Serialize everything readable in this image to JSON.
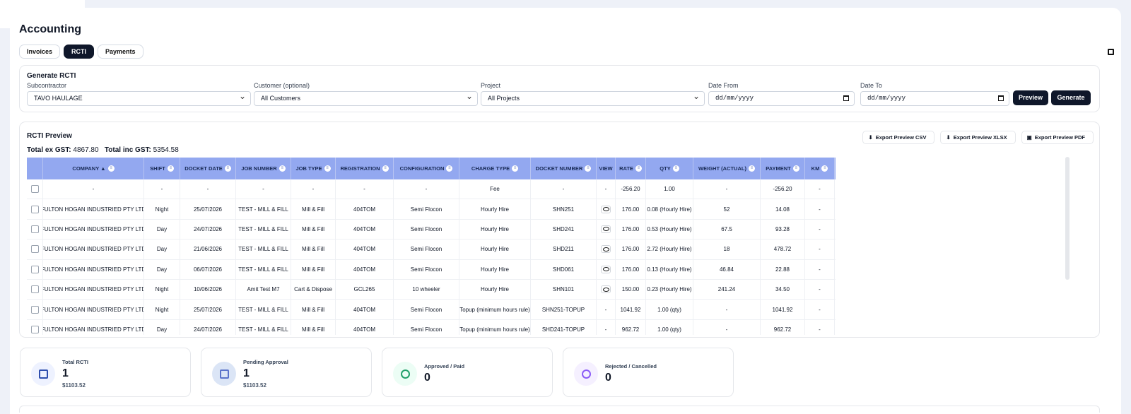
{
  "header": {
    "title": "Accounting",
    "tabs": [
      "Invoices",
      "RCTI",
      "Payments"
    ],
    "active_tab": "RCTI"
  },
  "generate": {
    "title": "Generate RCTI",
    "subcontractor_label": "Subcontractor",
    "subcontractor_value": "TAVO HAULAGE",
    "customer_label": "Customer (optional)",
    "customer_value": "All Customers",
    "project_label": "Project",
    "project_value": "All Projects",
    "date_from_label": "Date From",
    "date_to_label": "Date To",
    "date_placeholder": "dd/mm/yyyy",
    "preview": "Preview",
    "generate": "Generate"
  },
  "preview": {
    "title": "RCTI Preview",
    "total_ex_label": "Total ex GST:",
    "total_ex": "4867.80",
    "total_inc_label": "Total inc GST:",
    "total_inc": "5354.58",
    "exports": [
      "Export Preview CSV",
      "Export Preview XLSX",
      "Export Preview PDF"
    ]
  },
  "table": {
    "headers": [
      "COMPANY ▲",
      "SHIFT",
      "DOCKET DATE",
      "JOB NUMBER",
      "JOB TYPE",
      "REGISTRATION",
      "CONFIGURATION",
      "CHARGE TYPE",
      "DOCKET NUMBER",
      "VIEW",
      "RATE",
      "QTY",
      "WEIGHT (ACTUAL)",
      "PAYMENT",
      "KM"
    ],
    "rows": [
      [
        "-",
        "-",
        "-",
        "-",
        "-",
        "-",
        "-",
        "Fee",
        "-",
        "-",
        "-256.20",
        "1.00",
        "-",
        "-256.20",
        "-"
      ],
      [
        "FULTON HOGAN INDUSTRIED PTY LTD",
        "Night",
        "25/07/2026",
        "TEST - MILL & FILL",
        "Mill & Fill",
        "404TOM",
        "Semi Flocon",
        "Hourly Hire",
        "SHN251",
        "eye",
        "176.00",
        "0.08 (Hourly Hire)",
        "52",
        "14.08",
        "-"
      ],
      [
        "FULTON HOGAN INDUSTRIED PTY LTD",
        "Day",
        "24/07/2026",
        "TEST - MILL & FILL",
        "Mill & Fill",
        "404TOM",
        "Semi Flocon",
        "Hourly Hire",
        "SHD241",
        "eye",
        "176.00",
        "0.53 (Hourly Hire)",
        "67.5",
        "93.28",
        "-"
      ],
      [
        "FULTON HOGAN INDUSTRIED PTY LTD",
        "Day",
        "21/06/2026",
        "TEST - MILL & FILL",
        "Mill & Fill",
        "404TOM",
        "Semi Flocon",
        "Hourly Hire",
        "SHD211",
        "eye",
        "176.00",
        "2.72 (Hourly Hire)",
        "18",
        "478.72",
        "-"
      ],
      [
        "FULTON HOGAN INDUSTRIED PTY LTD",
        "Day",
        "06/07/2026",
        "TEST - MILL & FILL",
        "Mill & Fill",
        "404TOM",
        "Semi Flocon",
        "Hourly Hire",
        "SHD061",
        "eye",
        "176.00",
        "0.13 (Hourly Hire)",
        "46.84",
        "22.88",
        "-"
      ],
      [
        "FULTON HOGAN INDUSTRIED PTY LTD",
        "Night",
        "10/06/2026",
        "Amit Test M7",
        "Cart & Dispose",
        "GCL265",
        "10 wheeler",
        "Hourly Hire",
        "SHN101",
        "eye",
        "150.00",
        "0.23 (Hourly Hire)",
        "241.24",
        "34.50",
        "-"
      ],
      [
        "FULTON HOGAN INDUSTRIED PTY LTD",
        "Night",
        "25/07/2026",
        "TEST - MILL & FILL",
        "Mill & Fill",
        "404TOM",
        "Semi Flocon",
        "Topup (minimum hours rule)",
        "SHN251-TOPUP",
        "-",
        "1041.92",
        "1.00 (qty)",
        "-",
        "1041.92",
        "-"
      ],
      [
        "FULTON HOGAN INDUSTRIED PTY LTD",
        "Day",
        "24/07/2026",
        "TEST - MILL & FILL",
        "Mill & Fill",
        "404TOM",
        "Semi Flocon",
        "Topup (minimum hours rule)",
        "SHD241-TOPUP",
        "-",
        "962.72",
        "1.00 (qty)",
        "-",
        "962.72",
        "-"
      ]
    ]
  },
  "stats": [
    {
      "label": "Total RCTI",
      "value": "1",
      "money": "$1103.52",
      "icon": "clipboard-icon",
      "color": "#eef2ff",
      "iconColor": "#2f4fae"
    },
    {
      "label": "Pending Approval",
      "value": "1",
      "money": "$1103.52",
      "icon": "calendar-icon",
      "color": "#dbe5f6",
      "iconColor": "#5b73ca"
    },
    {
      "label": "Approved / Paid",
      "value": "0",
      "money": "",
      "icon": "check-circle-icon",
      "color": "#ecfdf5",
      "iconColor": "#22a06b"
    },
    {
      "label": "Rejected / Cancelled",
      "value": "0",
      "money": "",
      "icon": "info-circle-icon",
      "color": "#f5f0ff",
      "iconColor": "#8b5cf6"
    }
  ]
}
